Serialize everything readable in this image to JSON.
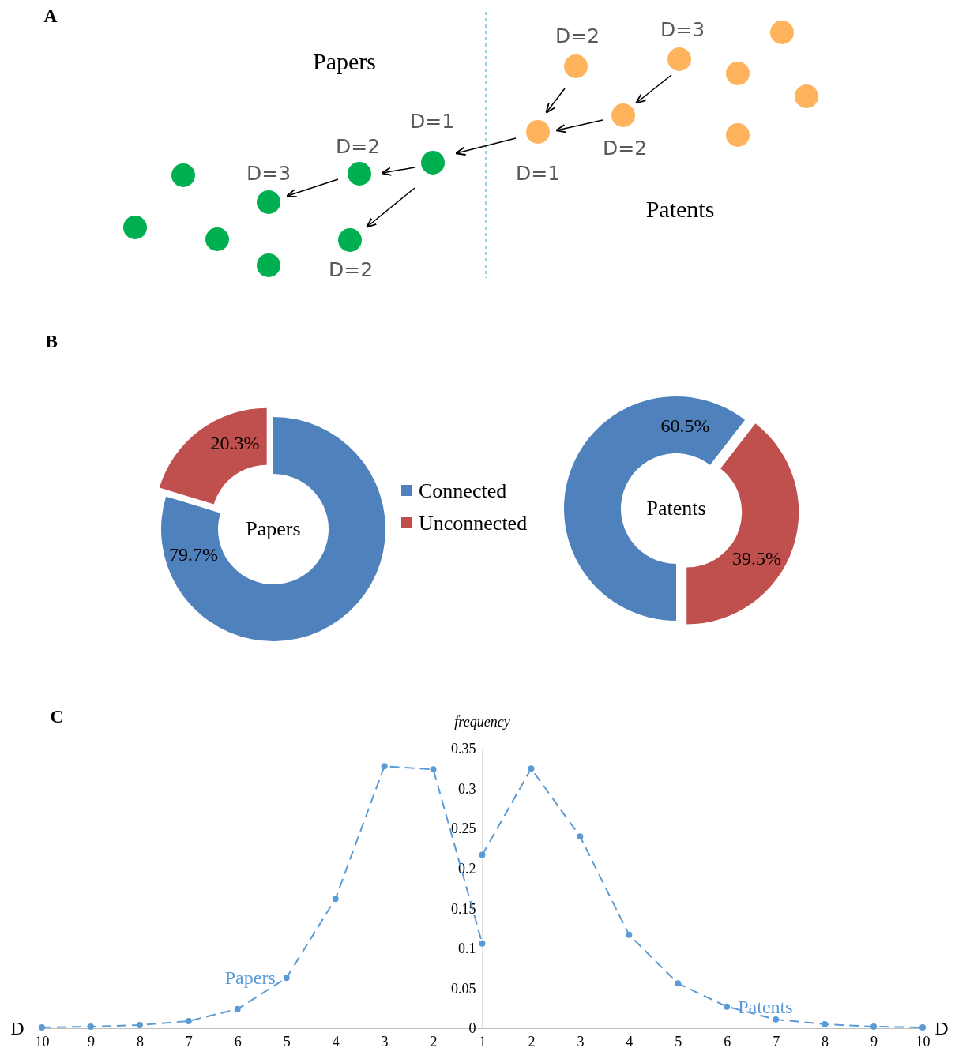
{
  "chart_data": [
    {
      "type": "other",
      "annotations": [
        "A",
        "Papers",
        "Patents",
        "D=1",
        "D=2",
        "D=3",
        "D=2",
        "D=1",
        "D=2",
        "D=2",
        "D=3"
      ]
    },
    {
      "type": "donut",
      "title": "Papers",
      "annotations": [
        "B"
      ],
      "categories": [
        "Connected",
        "Unconnected"
      ],
      "values": [
        79.7,
        20.3
      ],
      "colors": [
        "#4f81bd",
        "#c0504d"
      ],
      "value_labels": [
        "79.7%",
        "20.3%"
      ],
      "legend": "right"
    },
    {
      "type": "donut",
      "title": "Patents",
      "categories": [
        null,
        null
      ],
      "values": [
        60.5,
        39.5
      ],
      "colors": [
        "#4f81bd",
        "#c0504d"
      ],
      "value_labels": [
        "60.5%",
        "39.5%"
      ]
    },
    {
      "type": "line",
      "xlabel": "D",
      "ylabel": "frequency",
      "annotations": [
        "C",
        "D"
      ],
      "marker": "circle",
      "line_style": "dashed",
      "grid": false,
      "ylim": [
        0,
        0.35
      ],
      "categories": [
        "10",
        "9",
        "8",
        "7",
        "6",
        "5",
        "4",
        "3",
        "2",
        "1",
        "2",
        "3",
        "4",
        "5",
        "6",
        "7",
        "8",
        "9",
        "10"
      ],
      "yticks": [
        0,
        0.05,
        0.1,
        0.15,
        0.2,
        0.25,
        0.3,
        0.35
      ],
      "series": [
        {
          "name": "Papers",
          "color": "#5b9bd5",
          "values": [
            0.001,
            0.002,
            0.004,
            0.009,
            0.024,
            0.063,
            0.162,
            0.328,
            0.324,
            0.106,
            null,
            null,
            null,
            null,
            null,
            null,
            null,
            null,
            null
          ]
        },
        {
          "name": "Patents",
          "color": "#5b9bd5",
          "values": [
            null,
            null,
            null,
            null,
            null,
            null,
            null,
            null,
            null,
            0.217,
            0.325,
            0.24,
            0.117,
            0.056,
            0.027,
            0.011,
            0.005,
            0.002,
            0.001
          ]
        }
      ]
    }
  ]
}
